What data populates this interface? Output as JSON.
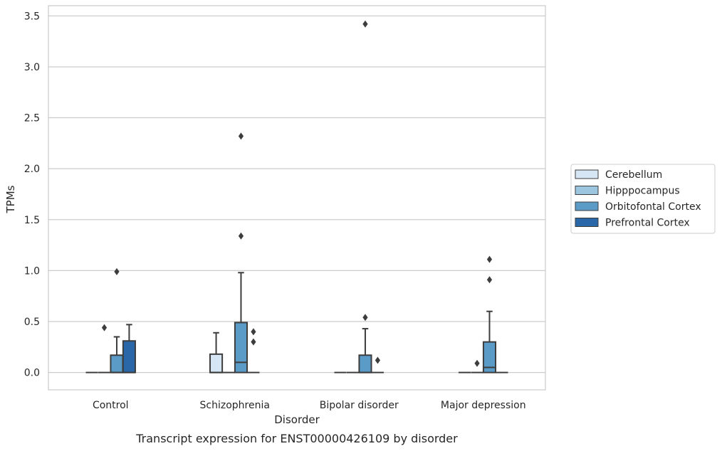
{
  "caption": "Transcript expression for ENST00000426109 by disorder",
  "chart_data": {
    "type": "box",
    "xlabel": "Disorder",
    "ylabel": "TPMs",
    "ylim": [
      -0.17,
      3.6
    ],
    "yticks": [
      "0.0",
      "0.5",
      "1.0",
      "1.5",
      "2.0",
      "2.5",
      "3.0",
      "3.5"
    ],
    "categories": [
      "Control",
      "Schizophrenia",
      "Bipolar disorder",
      "Major depression"
    ],
    "grid": "horizontal",
    "legend_position": "right",
    "series": [
      {
        "name": "Cerebellum",
        "color": "#d6e6f4",
        "boxes": [
          {
            "q1": 0,
            "median": 0,
            "q3": 0,
            "whisker_low": 0,
            "whisker_high": 0,
            "outliers": []
          },
          {
            "q1": 0,
            "median": 0,
            "q3": 0.18,
            "whisker_low": 0,
            "whisker_high": 0.39,
            "outliers": []
          },
          {
            "q1": 0,
            "median": 0,
            "q3": 0,
            "whisker_low": 0,
            "whisker_high": 0,
            "outliers": []
          },
          {
            "q1": 0,
            "median": 0,
            "q3": 0,
            "whisker_low": 0,
            "whisker_high": 0,
            "outliers": []
          }
        ]
      },
      {
        "name": "Hipppocampus",
        "color": "#9cc5e0",
        "boxes": [
          {
            "q1": 0,
            "median": 0,
            "q3": 0,
            "whisker_low": 0,
            "whisker_high": 0,
            "outliers": [
              0.44
            ]
          },
          {
            "q1": 0,
            "median": 0,
            "q3": 0,
            "whisker_low": 0,
            "whisker_high": 0,
            "outliers": []
          },
          {
            "q1": 0,
            "median": 0,
            "q3": 0,
            "whisker_low": 0,
            "whisker_high": 0,
            "outliers": []
          },
          {
            "q1": 0,
            "median": 0,
            "q3": 0,
            "whisker_low": 0,
            "whisker_high": 0,
            "outliers": [
              0.09
            ]
          }
        ]
      },
      {
        "name": "Orbitofontal Cortex",
        "color": "#5a9bc8",
        "boxes": [
          {
            "q1": 0,
            "median": 0,
            "q3": 0.17,
            "whisker_low": 0,
            "whisker_high": 0.35,
            "outliers": [
              0.99
            ]
          },
          {
            "q1": 0,
            "median": 0.1,
            "q3": 0.49,
            "whisker_low": 0,
            "whisker_high": 0.98,
            "outliers": [
              1.34,
              2.32
            ]
          },
          {
            "q1": 0,
            "median": 0,
            "q3": 0.17,
            "whisker_low": 0,
            "whisker_high": 0.43,
            "outliers": [
              0.54,
              3.42
            ]
          },
          {
            "q1": 0,
            "median": 0.05,
            "q3": 0.3,
            "whisker_low": 0,
            "whisker_high": 0.6,
            "outliers": [
              0.91,
              1.11
            ]
          }
        ]
      },
      {
        "name": "Prefrontal Cortex",
        "color": "#2a67a8",
        "boxes": [
          {
            "q1": 0,
            "median": 0,
            "q3": 0.31,
            "whisker_low": 0,
            "whisker_high": 0.47,
            "outliers": []
          },
          {
            "q1": 0,
            "median": 0,
            "q3": 0,
            "whisker_low": 0,
            "whisker_high": 0,
            "outliers": [
              0.3,
              0.4
            ]
          },
          {
            "q1": 0,
            "median": 0,
            "q3": 0,
            "whisker_low": 0,
            "whisker_high": 0,
            "outliers": [
              0.12
            ]
          },
          {
            "q1": 0,
            "median": 0,
            "q3": 0,
            "whisker_low": 0,
            "whisker_high": 0,
            "outliers": []
          }
        ]
      }
    ]
  }
}
